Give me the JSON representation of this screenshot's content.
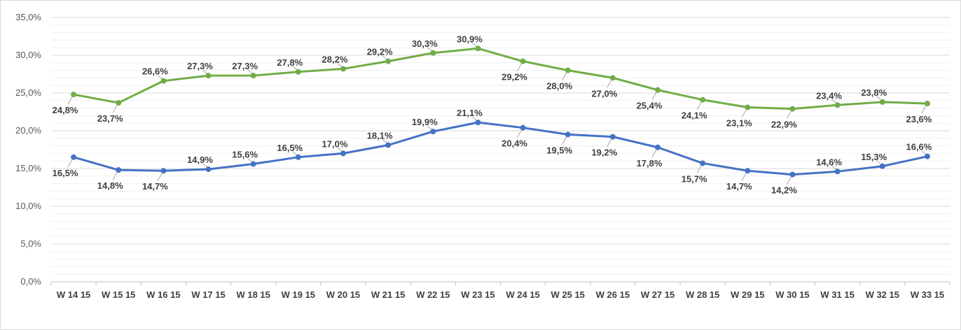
{
  "chart_data": {
    "type": "line",
    "title": "",
    "xlabel": "",
    "ylabel": "",
    "ylim": [
      0,
      35
    ],
    "y_tick_labels": [
      "0,0%",
      "5,0%",
      "10,0%",
      "15,0%",
      "20,0%",
      "25,0%",
      "30,0%",
      "35,0%"
    ],
    "grid": "horizontal major and minor",
    "legend": "none",
    "categories": [
      "W 14 15",
      "W 15 15",
      "W 16 15",
      "W 17 15",
      "W 18 15",
      "W 19 15",
      "W 20 15",
      "W 21 15",
      "W 22 15",
      "W 23 15",
      "W 24 15",
      "W 25 15",
      "W 26 15",
      "W 27 15",
      "W 28 15",
      "W 29 15",
      "W 30 15",
      "W 31 15",
      "W 32 15",
      "W 33 15"
    ],
    "series": [
      {
        "color": "#70ad47",
        "values": [
          24.8,
          23.7,
          26.6,
          27.3,
          27.3,
          27.8,
          28.2,
          29.2,
          30.3,
          30.9,
          29.2,
          28.0,
          27.0,
          25.4,
          24.1,
          23.1,
          22.9,
          23.4,
          23.8,
          23.6
        ],
        "labels": [
          "24,8%",
          "23,7%",
          "26,6%",
          "27,3%",
          "27,3%",
          "27,8%",
          "28,2%",
          "29,2%",
          "30,3%",
          "30,9%",
          "29,2%",
          "28,0%",
          "27,0%",
          "25,4%",
          "24,1%",
          "23,1%",
          "22,9%",
          "23,4%",
          "23,8%",
          "23,6%"
        ]
      },
      {
        "color": "#4472c4",
        "values": [
          16.5,
          14.8,
          14.7,
          14.9,
          15.6,
          16.5,
          17.0,
          18.1,
          19.9,
          21.1,
          20.4,
          19.5,
          19.2,
          17.8,
          15.7,
          14.7,
          14.2,
          14.6,
          15.3,
          16.6
        ],
        "labels": [
          "16,5%",
          "14,8%",
          "14,7%",
          "14,9%",
          "15,6%",
          "16,5%",
          "17,0%",
          "18,1%",
          "19,9%",
          "21,1%",
          "20,4%",
          "19,5%",
          "19,2%",
          "17,8%",
          "15,7%",
          "14,7%",
          "14,2%",
          "14,6%",
          "15,3%",
          "16,6%"
        ]
      }
    ]
  }
}
